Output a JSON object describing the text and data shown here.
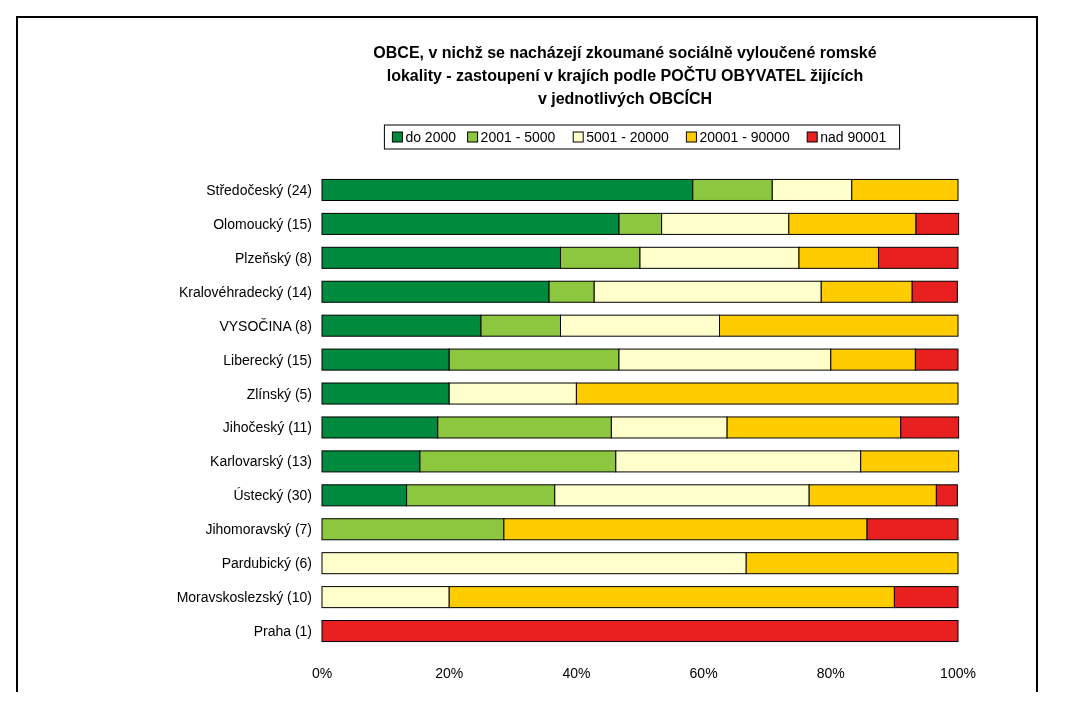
{
  "chart_data": {
    "type": "bar",
    "orientation": "horizontal",
    "stacked": true,
    "title": "OBCE, v nichž se nacházejí zkoumané sociálně vyloučené romské lokality - zastoupení v krajích podle POČTU OBYVATEL žijících v jednotlivých OBCÍCH",
    "categories": [
      "Středočeský (24)",
      "Olomoucký (15)",
      "Plzeňský (8)",
      "Kralovéhradecký (14)",
      "VYSOČINA (8)",
      "Liberecký (15)",
      "Zlínský (5)",
      "Jihočeský (11)",
      "Karlovarský (13)",
      "Ústecký (30)",
      "Jihomoravský (7)",
      "Pardubický (6)",
      "Moravskoslezský (10)",
      "Praha (1)"
    ],
    "series": [
      {
        "name": "do 2000",
        "color": "#008a3e",
        "values": [
          58.3,
          46.7,
          37.5,
          35.7,
          25,
          20,
          20,
          18.2,
          15.4,
          13.3,
          0,
          0,
          0,
          0
        ]
      },
      {
        "name": "2001 - 5000",
        "color": "#8dc63f",
        "values": [
          12.5,
          6.7,
          12.5,
          7.1,
          12.5,
          26.7,
          0,
          27.3,
          30.8,
          23.3,
          28.6,
          0,
          0,
          0
        ]
      },
      {
        "name": "5001 - 20000",
        "color": "#ffffcc",
        "values": [
          12.5,
          20,
          25,
          35.7,
          25,
          33.3,
          20,
          18.2,
          38.5,
          40,
          0,
          66.7,
          20,
          0
        ]
      },
      {
        "name": "20001 - 90000",
        "color": "#ffcc00",
        "values": [
          16.7,
          20,
          12.5,
          14.3,
          37.5,
          13.3,
          60,
          27.3,
          15.4,
          20,
          57.1,
          33.3,
          70,
          0
        ]
      },
      {
        "name": "nad 90001",
        "color": "#e8201f",
        "values": [
          0,
          6.7,
          12.5,
          7.1,
          0,
          6.7,
          0,
          9.1,
          0,
          3.3,
          14.3,
          0,
          10,
          100
        ]
      }
    ],
    "xlim": [
      0,
      100
    ],
    "xticks": [
      {
        "value": 0,
        "label": "0%"
      },
      {
        "value": 20,
        "label": "20%"
      },
      {
        "value": 40,
        "label": "40%"
      },
      {
        "value": 60,
        "label": "60%"
      },
      {
        "value": 80,
        "label": "80%"
      },
      {
        "value": 100,
        "label": "100%"
      }
    ],
    "grid": false,
    "legend": "top"
  }
}
